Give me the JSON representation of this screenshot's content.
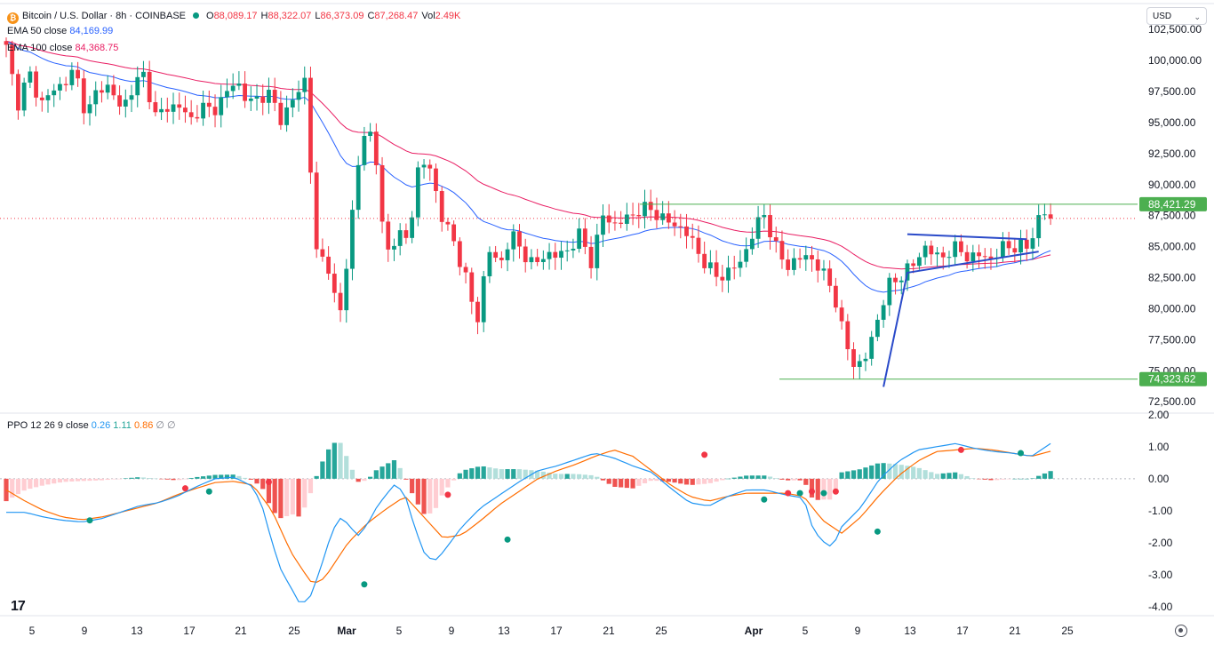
{
  "header": {
    "symbol": "Bitcoin / U.S. Dollar · 8h · COINBASE",
    "ohlc": [
      {
        "k": "O",
        "v": "88,089.17"
      },
      {
        "k": "H",
        "v": "88,322.07"
      },
      {
        "k": "L",
        "v": "86,373.09"
      },
      {
        "k": "C",
        "v": "87,268.47"
      },
      {
        "k": "Vol",
        "v": "2.49K"
      }
    ],
    "ema50_label": "EMA 50 close",
    "ema50_value": "84,169.99",
    "ema100_label": "EMA 100 close",
    "ema100_value": "84,368.75",
    "ppo_label": "PPO 12 26 9 close",
    "ppo_values": [
      "0.26",
      "1.11",
      "0.86"
    ],
    "ppo_extra": "∅ ∅",
    "currency": "USD"
  },
  "colors": {
    "up": "#089981",
    "down": "#f23645",
    "ema50": "#2962ff",
    "ema100": "#e91e63",
    "support": "#4caf50",
    "pattern": "#2a4ac9",
    "ppo_line": "#2196f3",
    "ppo_signal": "#ff6d00",
    "hist_up_strong": "#26a69a",
    "hist_up_weak": "#b2dfdb",
    "hist_down_strong": "#ef5350",
    "hist_down_weak": "#ffcdd2"
  },
  "chart_data": [
    {
      "type": "candlestick",
      "title": "Bitcoin / U.S. Dollar · 8h · COINBASE",
      "y_ticks": [
        "102,500.00",
        "100,000.00",
        "97,500.00",
        "95,000.00",
        "92,500.00",
        "90,000.00",
        "87,500.00",
        "85,000.00",
        "82,500.00",
        "80,000.00",
        "77,500.00",
        "75,000.00",
        "72,500.00"
      ],
      "ylim": [
        71800,
        104300
      ],
      "x_ticks": [
        "5",
        "9",
        "13",
        "17",
        "21",
        "25",
        "Mar",
        "5",
        "9",
        "13",
        "17",
        "21",
        "25",
        "Apr",
        "5",
        "9",
        "13",
        "17",
        "21",
        "25"
      ],
      "last_price": 87268.47,
      "level_labels": [
        "88,421.29",
        "74,323.62"
      ],
      "levels": [
        88421.29,
        74323.62
      ],
      "anchors": [
        [
          101000,
          96500
        ],
        [
          99000,
          96500
        ],
        [
          97500,
          98200
        ],
        [
          99200,
          95500
        ],
        [
          97800,
          97900
        ],
        [
          96000,
          97800
        ],
        [
          98900,
          95500
        ],
        [
          96200,
          96400
        ],
        [
          95200,
          96200
        ],
        [
          96000,
          97000
        ],
        [
          98600,
          96500
        ],
        [
          97100,
          97200
        ],
        [
          95200,
          96800
        ],
        [
          98500,
          84500
        ],
        [
          83800,
          78800
        ],
        [
          86500,
          93900
        ],
        [
          94300,
          84200
        ],
        [
          86000,
          85500
        ],
        [
          91900,
          91200
        ],
        [
          87200,
          85400
        ],
        [
          82600,
          78800
        ],
        [
          84800,
          83500
        ],
        [
          86000,
          84600
        ],
        [
          83400,
          84500
        ],
        [
          84200,
          84800
        ],
        [
          86000,
          83700
        ],
        [
          87500,
          86800
        ],
        [
          87200,
          87900
        ],
        [
          88100,
          87400
        ],
        [
          86800,
          86500
        ],
        [
          85000,
          83500
        ],
        [
          82500,
          83000
        ],
        [
          83800,
          85900
        ],
        [
          87800,
          85000
        ],
        [
          83400,
          84000
        ],
        [
          84300,
          83000
        ],
        [
          81700,
          77600
        ],
        [
          75200,
          76200
        ],
        [
          79500,
          82000
        ],
        [
          82700,
          83500
        ],
        [
          85000,
          84200
        ],
        [
          84400,
          85000
        ],
        [
          83900,
          84500
        ],
        [
          83800,
          85300
        ],
        [
          84800,
          85100
        ],
        [
          87200,
          87300
        ]
      ]
    },
    {
      "type": "line+histogram",
      "title": "PPO 12 26 9 close",
      "y_ticks": [
        "2.00",
        "1.00",
        "0.00",
        "-1.00",
        "-2.00",
        "-3.00",
        "-4.00"
      ],
      "ylim": [
        -4.25,
        2.05
      ],
      "ppo_anchors": [
        [
          0,
          -1.05
        ],
        [
          2,
          -1.05
        ],
        [
          4,
          -1.2
        ],
        [
          6,
          -1.3
        ],
        [
          8,
          -1.35
        ],
        [
          10,
          -1.25
        ],
        [
          12,
          -1.05
        ],
        [
          14,
          -0.85
        ],
        [
          16,
          -0.75
        ],
        [
          18,
          -0.55
        ],
        [
          20,
          -0.25
        ],
        [
          22,
          0.0
        ],
        [
          24,
          0.05
        ],
        [
          26,
          -0.25
        ],
        [
          27,
          -0.9
        ],
        [
          28,
          -2.0
        ],
        [
          29,
          -2.9
        ],
        [
          30,
          -3.4
        ],
        [
          31,
          -3.95
        ],
        [
          32,
          -3.7
        ],
        [
          33,
          -2.9
        ],
        [
          34,
          -1.95
        ],
        [
          35,
          -1.2
        ],
        [
          36,
          -1.4
        ],
        [
          37,
          -1.8
        ],
        [
          38,
          -1.45
        ],
        [
          39,
          -0.9
        ],
        [
          40,
          -0.5
        ],
        [
          41,
          -0.15
        ],
        [
          42,
          -0.5
        ],
        [
          43,
          -1.5
        ],
        [
          44,
          -2.3
        ],
        [
          45,
          -2.6
        ],
        [
          46,
          -2.3
        ],
        [
          47,
          -1.9
        ],
        [
          48,
          -1.5
        ],
        [
          50,
          -0.9
        ],
        [
          52,
          -0.5
        ],
        [
          54,
          -0.1
        ],
        [
          56,
          0.25
        ],
        [
          58,
          0.4
        ],
        [
          60,
          0.6
        ],
        [
          62,
          0.8
        ],
        [
          64,
          0.65
        ],
        [
          66,
          0.4
        ],
        [
          68,
          0.2
        ],
        [
          70,
          -0.3
        ],
        [
          72,
          -0.75
        ],
        [
          74,
          -0.85
        ],
        [
          76,
          -0.55
        ],
        [
          78,
          -0.35
        ],
        [
          80,
          -0.35
        ],
        [
          82,
          -0.5
        ],
        [
          84,
          -0.6
        ],
        [
          85,
          -1.6
        ],
        [
          86,
          -1.95
        ],
        [
          87,
          -2.15
        ],
        [
          88,
          -1.5
        ],
        [
          90,
          -0.9
        ],
        [
          92,
          0.0
        ],
        [
          94,
          0.55
        ],
        [
          96,
          0.9
        ],
        [
          98,
          1.0
        ],
        [
          100,
          1.1
        ],
        [
          102,
          0.95
        ],
        [
          104,
          0.85
        ],
        [
          106,
          0.8
        ],
        [
          108,
          0.7
        ],
        [
          110,
          1.1
        ]
      ],
      "signal_anchors": [
        [
          0,
          -0.35
        ],
        [
          2,
          -0.7
        ],
        [
          4,
          -1.0
        ],
        [
          6,
          -1.2
        ],
        [
          8,
          -1.28
        ],
        [
          10,
          -1.2
        ],
        [
          12,
          -1.05
        ],
        [
          14,
          -0.9
        ],
        [
          16,
          -0.75
        ],
        [
          18,
          -0.5
        ],
        [
          20,
          -0.3
        ],
        [
          22,
          -0.12
        ],
        [
          24,
          -0.08
        ],
        [
          26,
          -0.2
        ],
        [
          28,
          -1.0
        ],
        [
          30,
          -2.3
        ],
        [
          32,
          -3.2
        ],
        [
          33,
          -3.25
        ],
        [
          34,
          -2.9
        ],
        [
          36,
          -2.0
        ],
        [
          38,
          -1.4
        ],
        [
          40,
          -0.95
        ],
        [
          42,
          -0.55
        ],
        [
          44,
          -1.2
        ],
        [
          46,
          -1.85
        ],
        [
          48,
          -1.75
        ],
        [
          50,
          -1.3
        ],
        [
          52,
          -0.8
        ],
        [
          54,
          -0.4
        ],
        [
          56,
          0.0
        ],
        [
          58,
          0.25
        ],
        [
          60,
          0.45
        ],
        [
          62,
          0.7
        ],
        [
          64,
          0.9
        ],
        [
          66,
          0.7
        ],
        [
          68,
          0.25
        ],
        [
          70,
          -0.2
        ],
        [
          72,
          -0.55
        ],
        [
          74,
          -0.7
        ],
        [
          76,
          -0.55
        ],
        [
          78,
          -0.45
        ],
        [
          80,
          -0.45
        ],
        [
          82,
          -0.45
        ],
        [
          84,
          -0.55
        ],
        [
          86,
          -1.3
        ],
        [
          88,
          -1.7
        ],
        [
          90,
          -1.2
        ],
        [
          92,
          -0.5
        ],
        [
          94,
          0.1
        ],
        [
          96,
          0.55
        ],
        [
          98,
          0.85
        ],
        [
          100,
          0.9
        ],
        [
          102,
          0.95
        ],
        [
          104,
          0.9
        ],
        [
          106,
          0.8
        ],
        [
          108,
          0.7
        ],
        [
          110,
          0.86
        ]
      ],
      "cross_markers": [
        {
          "i": 14,
          "v": -1.3,
          "c": "#089981"
        },
        {
          "i": 30,
          "v": -0.3,
          "c": "#f23645"
        },
        {
          "i": 34,
          "v": -0.4,
          "c": "#089981"
        },
        {
          "i": 44,
          "v": -0.1,
          "c": "#f23645"
        },
        {
          "i": 60,
          "v": -3.3,
          "c": "#089981"
        },
        {
          "i": 74,
          "v": -0.5,
          "c": "#f23645"
        },
        {
          "i": 84,
          "v": -1.9,
          "c": "#089981"
        },
        {
          "i": 117,
          "v": 0.75,
          "c": "#f23645"
        },
        {
          "i": 127,
          "v": -0.65,
          "c": "#089981"
        },
        {
          "i": 131,
          "v": -0.45,
          "c": "#f23645"
        },
        {
          "i": 133,
          "v": -0.45,
          "c": "#089981"
        },
        {
          "i": 135,
          "v": -0.4,
          "c": "#f23645"
        },
        {
          "i": 137,
          "v": -0.45,
          "c": "#089981"
        },
        {
          "i": 139,
          "v": -0.4,
          "c": "#f23645"
        },
        {
          "i": 146,
          "v": -1.65,
          "c": "#089981"
        },
        {
          "i": 160,
          "v": 0.9,
          "c": "#f23645"
        },
        {
          "i": 170,
          "v": 0.8,
          "c": "#089981"
        }
      ]
    }
  ]
}
